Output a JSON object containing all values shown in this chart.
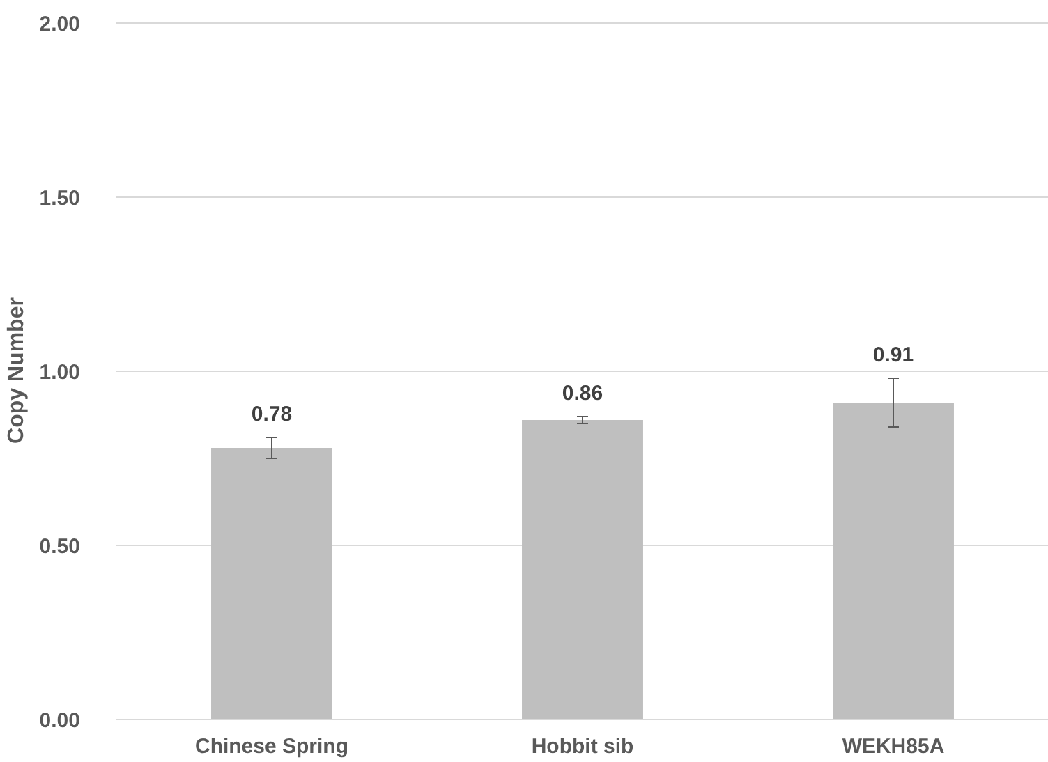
{
  "chart_data": {
    "type": "bar",
    "ylabel": "Copy Number",
    "categories": [
      "Chinese Spring",
      "Hobbit sib",
      "WEKH85A"
    ],
    "values": [
      0.78,
      0.86,
      0.91
    ],
    "color": "#bfbfbf",
    "errors": [
      0.03,
      0.01,
      0.07
    ],
    "value_labels": [
      "0.78",
      "0.86",
      "0.91"
    ],
    "ylim": [
      0,
      2
    ],
    "yticks": [
      {
        "value": 0,
        "label": "0.00"
      },
      {
        "value": 0.5,
        "label": "0.50"
      },
      {
        "value": 1,
        "label": "1.00"
      },
      {
        "value": 1.5,
        "label": "1.50"
      },
      {
        "value": 2,
        "label": "2.00"
      }
    ],
    "grid": "y"
  }
}
